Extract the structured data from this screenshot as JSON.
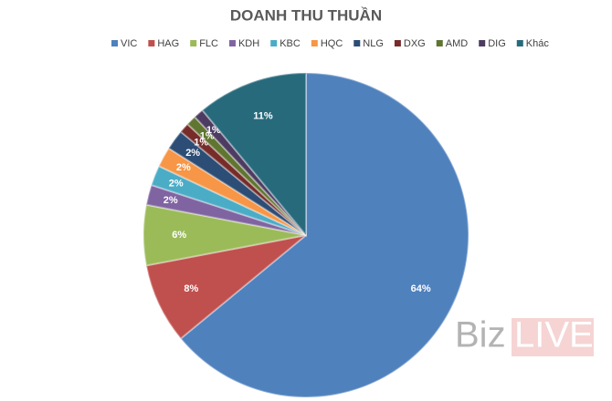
{
  "chart_data": {
    "type": "pie",
    "title": "DOANH THU THUẦN",
    "categories": [
      "VIC",
      "HAG",
      "FLC",
      "KDH",
      "KBC",
      "HQC",
      "NLG",
      "DXG",
      "AMD",
      "DIG",
      "Khác"
    ],
    "values": [
      64,
      8,
      6,
      2,
      2,
      2,
      2,
      1,
      1,
      1,
      11
    ],
    "value_labels": [
      "64%",
      "8%",
      "6%",
      "2%",
      "2%",
      "2%",
      "2%",
      "1%",
      "1%",
      "1%",
      "11%"
    ],
    "colors": [
      "#4f81bd",
      "#c0504d",
      "#9bbb59",
      "#8064a2",
      "#4bacc6",
      "#f79646",
      "#2c4d75",
      "#772c2a",
      "#5f7530",
      "#4d3b62",
      "#276a7c"
    ],
    "legend": "top"
  },
  "watermark": {
    "left": "Biz",
    "right": "LIVE"
  }
}
